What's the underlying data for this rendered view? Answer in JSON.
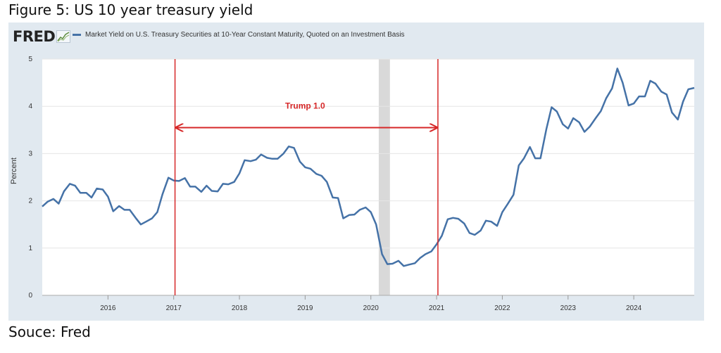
{
  "figure_title": "Figure 5: US 10 year treasury yield",
  "logo_text": "FRED",
  "source_note": "Souce: Fred",
  "chart_data": {
    "type": "line",
    "title": "",
    "xlabel": "",
    "ylabel": "Percent",
    "ylim": [
      0,
      5
    ],
    "yticks": [
      0,
      1,
      2,
      3,
      4,
      5
    ],
    "xlim": [
      2015.0,
      2024.92
    ],
    "xticks": [
      2016,
      2017,
      2018,
      2019,
      2020,
      2021,
      2022,
      2023,
      2024
    ],
    "grid": true,
    "legend_position": "top-left",
    "colors": {
      "series": "#4572a7",
      "annotation": "#d62728",
      "recession": "#d9d9d9",
      "panel": "#e1e9f0"
    },
    "recession_shading": [
      {
        "start": 2020.12,
        "end": 2020.29
      }
    ],
    "annotations": [
      {
        "type": "vline",
        "x": 2017.02
      },
      {
        "type": "vline",
        "x": 2021.02
      },
      {
        "type": "double-arrow",
        "from": 2017.02,
        "to": 2021.02,
        "y": 3.55
      },
      {
        "type": "text",
        "text": "Trump 1.0",
        "x": 2019.0,
        "y": 3.95
      }
    ],
    "series": [
      {
        "name": "Market Yield on U.S. Treasury Securities at 10-Year Constant Maturity, Quoted on an Investment Basis",
        "x": [
          2015.0,
          2015.08,
          2015.17,
          2015.25,
          2015.33,
          2015.42,
          2015.5,
          2015.58,
          2015.67,
          2015.75,
          2015.83,
          2015.92,
          2016.0,
          2016.08,
          2016.17,
          2016.25,
          2016.33,
          2016.42,
          2016.5,
          2016.58,
          2016.67,
          2016.75,
          2016.83,
          2016.92,
          2017.0,
          2017.08,
          2017.17,
          2017.25,
          2017.33,
          2017.42,
          2017.5,
          2017.58,
          2017.67,
          2017.75,
          2017.83,
          2017.92,
          2018.0,
          2018.08,
          2018.17,
          2018.25,
          2018.33,
          2018.42,
          2018.5,
          2018.58,
          2018.67,
          2018.75,
          2018.83,
          2018.92,
          2019.0,
          2019.08,
          2019.17,
          2019.25,
          2019.33,
          2019.42,
          2019.5,
          2019.58,
          2019.67,
          2019.75,
          2019.83,
          2019.92,
          2020.0,
          2020.08,
          2020.17,
          2020.25,
          2020.33,
          2020.42,
          2020.5,
          2020.58,
          2020.67,
          2020.75,
          2020.83,
          2020.92,
          2021.0,
          2021.08,
          2021.17,
          2021.25,
          2021.33,
          2021.42,
          2021.5,
          2021.58,
          2021.67,
          2021.75,
          2021.83,
          2021.92,
          2022.0,
          2022.08,
          2022.17,
          2022.25,
          2022.33,
          2022.42,
          2022.5,
          2022.58,
          2022.67,
          2022.75,
          2022.83,
          2022.92,
          2023.0,
          2023.08,
          2023.17,
          2023.25,
          2023.33,
          2023.42,
          2023.5,
          2023.58,
          2023.67,
          2023.75,
          2023.83,
          2023.92,
          2024.0,
          2024.08,
          2024.17,
          2024.25,
          2024.33,
          2024.42,
          2024.5,
          2024.58,
          2024.67,
          2024.75,
          2024.83,
          2024.92
        ],
        "y": [
          1.88,
          1.98,
          2.04,
          1.94,
          2.2,
          2.36,
          2.32,
          2.17,
          2.17,
          2.07,
          2.26,
          2.24,
          2.09,
          1.78,
          1.89,
          1.81,
          1.81,
          1.64,
          1.5,
          1.56,
          1.63,
          1.76,
          2.14,
          2.49,
          2.43,
          2.42,
          2.48,
          2.3,
          2.3,
          2.19,
          2.32,
          2.21,
          2.2,
          2.36,
          2.35,
          2.4,
          2.58,
          2.86,
          2.84,
          2.87,
          2.98,
          2.91,
          2.89,
          2.89,
          3.0,
          3.15,
          3.12,
          2.83,
          2.71,
          2.68,
          2.57,
          2.53,
          2.4,
          2.07,
          2.06,
          1.63,
          1.7,
          1.71,
          1.81,
          1.86,
          1.76,
          1.5,
          0.87,
          0.66,
          0.67,
          0.73,
          0.62,
          0.65,
          0.68,
          0.79,
          0.87,
          0.93,
          1.08,
          1.26,
          1.61,
          1.64,
          1.62,
          1.52,
          1.32,
          1.28,
          1.37,
          1.58,
          1.56,
          1.47,
          1.76,
          1.93,
          2.13,
          2.75,
          2.9,
          3.14,
          2.9,
          2.9,
          3.52,
          3.98,
          3.89,
          3.62,
          3.53,
          3.75,
          3.66,
          3.46,
          3.57,
          3.75,
          3.9,
          4.17,
          4.38,
          4.8,
          4.5,
          4.02,
          4.06,
          4.21,
          4.21,
          4.54,
          4.48,
          4.31,
          4.25,
          3.87,
          3.72,
          4.1,
          4.36,
          4.39
        ]
      }
    ]
  }
}
